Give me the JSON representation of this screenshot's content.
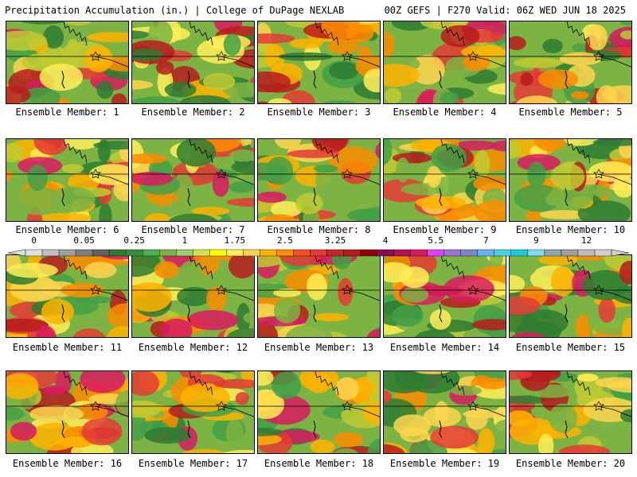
{
  "header": {
    "left": "Precipitation Accumulation (in.) | College of DuPage NEXLAB",
    "right": "00Z GEFS | F270 Valid: 06Z WED JUN 18 2025"
  },
  "panels": [
    {
      "label": "Ensemble Member: 1"
    },
    {
      "label": "Ensemble Member: 2"
    },
    {
      "label": "Ensemble Member: 3"
    },
    {
      "label": "Ensemble Member: 4"
    },
    {
      "label": "Ensemble Member: 5"
    },
    {
      "label": "Ensemble Member: 6"
    },
    {
      "label": "Ensemble Member: 7"
    },
    {
      "label": "Ensemble Member: 8"
    },
    {
      "label": "Ensemble Member: 9"
    },
    {
      "label": "Ensemble Member: 10"
    },
    {
      "label": "Ensemble Member: 11"
    },
    {
      "label": "Ensemble Member: 12"
    },
    {
      "label": "Ensemble Member: 13"
    },
    {
      "label": "Ensemble Member: 14"
    },
    {
      "label": "Ensemble Member: 15"
    },
    {
      "label": "Ensemble Member: 16"
    },
    {
      "label": "Ensemble Member: 17"
    },
    {
      "label": "Ensemble Member: 18"
    },
    {
      "label": "Ensemble Member: 19"
    },
    {
      "label": "Ensemble Member: 20"
    }
  ],
  "colorbar": {
    "labels": [
      "0",
      "0.05",
      "0.25",
      "1",
      "1.75",
      "2.5",
      "3.25",
      "4",
      "5.5",
      "7",
      "9",
      "12"
    ],
    "colors": [
      "#e0e0e0",
      "#c0c0c0",
      "#a0a0a0",
      "#808080",
      "#606060",
      "#2e7d32",
      "#388e3c",
      "#4caf50",
      "#7cb342",
      "#9ccc65",
      "#d4e157",
      "#ffff00",
      "#ffee58",
      "#ffd54f",
      "#ffb300",
      "#ff8f00",
      "#f4511e",
      "#e53935",
      "#c62828",
      "#b71c1c",
      "#8b0000",
      "#880e4f",
      "#ad1457",
      "#d81b60",
      "#e040fb",
      "#9575cd",
      "#7986cb",
      "#64b5f6",
      "#4dd0e1",
      "#26c6da",
      "#80deea",
      "#90a4ae",
      "#9e9e9e",
      "#bdbdbd",
      "#cfcfcf"
    ]
  }
}
